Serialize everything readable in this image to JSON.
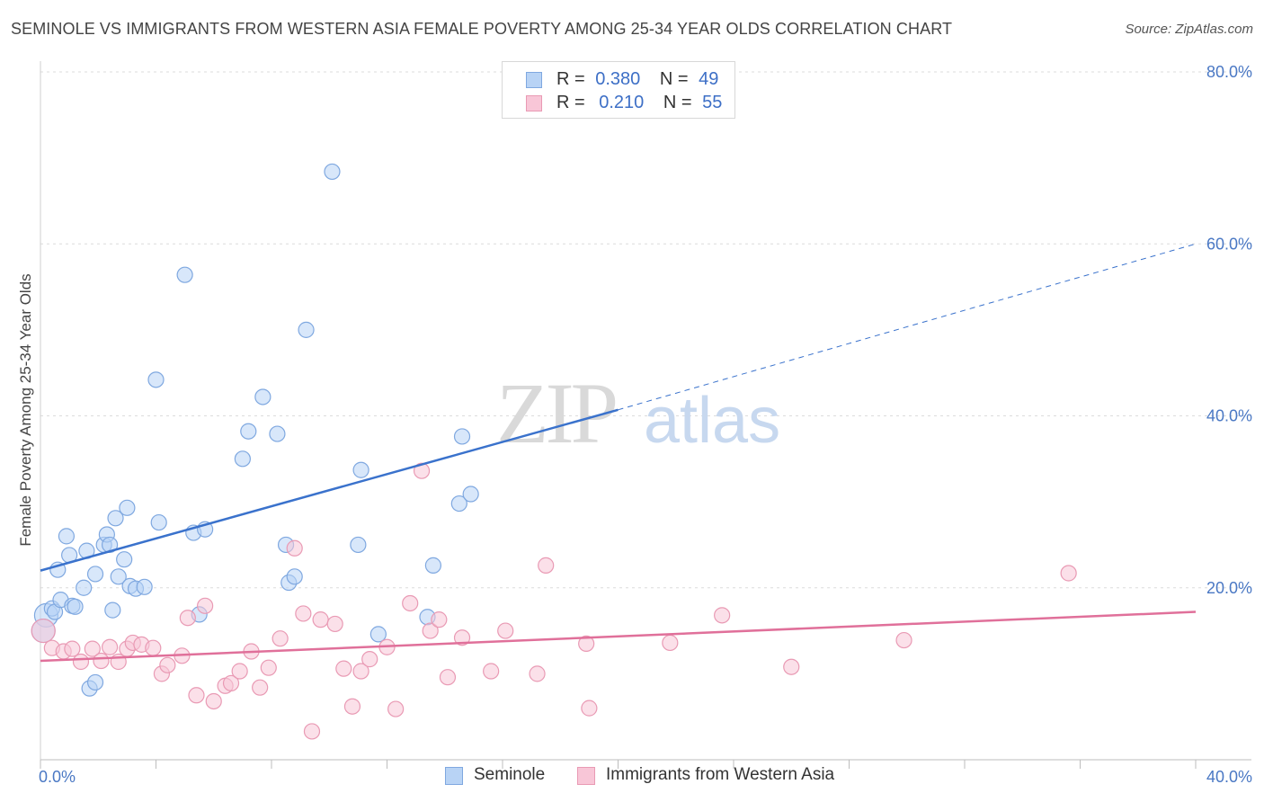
{
  "title": "SEMINOLE VS IMMIGRANTS FROM WESTERN ASIA FEMALE POVERTY AMONG 25-34 YEAR OLDS CORRELATION CHART",
  "source": "Source: ZipAtlas.com",
  "watermark": {
    "zip": "ZIP",
    "atlas": "atlas"
  },
  "legend": [
    {
      "r_label": "R =",
      "r_value": "0.380",
      "n_label": "N =",
      "n_value": "49",
      "fill": "#b8d3f5",
      "stroke": "#7fa8e0"
    },
    {
      "r_label": "R =",
      "r_value": "0.210",
      "n_label": "N =",
      "n_value": "55",
      "fill": "#f8c6d7",
      "stroke": "#e99ab4"
    }
  ],
  "chart_data": {
    "type": "scatter",
    "title": "SEMINOLE VS IMMIGRANTS FROM WESTERN ASIA FEMALE POVERTY AMONG 25-34 YEAR OLDS CORRELATION CHART",
    "xlabel": "",
    "ylabel": "Female Poverty Among 25-34 Year Olds",
    "xlim": [
      0,
      40
    ],
    "ylim": [
      0,
      80
    ],
    "x_tick_labels": [
      "0.0%",
      "40.0%"
    ],
    "y_ticks": [
      20,
      40,
      60,
      80
    ],
    "y_tick_labels": [
      "20.0%",
      "40.0%",
      "60.0%",
      "80.0%"
    ],
    "grid": true,
    "legend_position": "top-center",
    "series": [
      {
        "name": "Seminole",
        "color": "#7fa8e0",
        "fill": "#b8d3f5",
        "line_color": "#3a72cc",
        "trend": {
          "x": [
            0,
            20
          ],
          "y": [
            22.0,
            40.7
          ],
          "dashed_extension_to_x": 40,
          "dashed_y_end": 60.0
        },
        "points": [
          [
            0.2,
            16.8
          ],
          [
            0.4,
            17.6
          ],
          [
            0.5,
            17.2
          ],
          [
            0.6,
            22.1
          ],
          [
            0.7,
            18.6
          ],
          [
            0.9,
            26.0
          ],
          [
            1.0,
            23.8
          ],
          [
            1.1,
            17.9
          ],
          [
            1.2,
            17.8
          ],
          [
            1.5,
            20.0
          ],
          [
            1.6,
            24.3
          ],
          [
            1.7,
            8.3
          ],
          [
            1.9,
            9.0
          ],
          [
            1.9,
            21.6
          ],
          [
            2.2,
            25.0
          ],
          [
            2.3,
            26.2
          ],
          [
            2.4,
            25.0
          ],
          [
            2.5,
            17.4
          ],
          [
            2.6,
            28.1
          ],
          [
            2.7,
            21.3
          ],
          [
            2.9,
            23.3
          ],
          [
            3.0,
            29.3
          ],
          [
            3.1,
            20.2
          ],
          [
            3.3,
            19.9
          ],
          [
            3.6,
            20.1
          ],
          [
            4.0,
            44.2
          ],
          [
            4.1,
            27.6
          ],
          [
            5.0,
            56.4
          ],
          [
            5.3,
            26.4
          ],
          [
            5.5,
            16.9
          ],
          [
            5.7,
            26.8
          ],
          [
            7.0,
            35.0
          ],
          [
            7.2,
            38.2
          ],
          [
            7.7,
            42.2
          ],
          [
            8.2,
            37.9
          ],
          [
            8.5,
            25.0
          ],
          [
            8.6,
            20.6
          ],
          [
            8.8,
            21.3
          ],
          [
            9.2,
            50.0
          ],
          [
            10.1,
            68.4
          ],
          [
            11.0,
            25.0
          ],
          [
            11.1,
            33.7
          ],
          [
            11.7,
            14.6
          ],
          [
            13.4,
            16.6
          ],
          [
            13.6,
            22.6
          ],
          [
            14.5,
            29.8
          ],
          [
            14.9,
            30.9
          ],
          [
            14.6,
            37.6
          ],
          [
            0.1,
            15.0
          ]
        ]
      },
      {
        "name": "Immigrants from Western Asia",
        "color": "#e99ab4",
        "fill": "#f8c6d7",
        "line_color": "#e0709a",
        "trend": {
          "x": [
            0,
            40
          ],
          "y": [
            11.5,
            17.2
          ]
        },
        "points": [
          [
            0.1,
            15.0
          ],
          [
            0.4,
            13.0
          ],
          [
            0.8,
            12.6
          ],
          [
            1.1,
            12.9
          ],
          [
            1.4,
            11.4
          ],
          [
            1.8,
            12.9
          ],
          [
            2.1,
            11.5
          ],
          [
            2.4,
            13.1
          ],
          [
            2.7,
            11.4
          ],
          [
            3.0,
            12.9
          ],
          [
            3.2,
            13.6
          ],
          [
            3.5,
            13.4
          ],
          [
            3.9,
            13.0
          ],
          [
            4.2,
            10.0
          ],
          [
            4.4,
            11.0
          ],
          [
            4.9,
            12.1
          ],
          [
            5.1,
            16.5
          ],
          [
            5.4,
            7.5
          ],
          [
            5.7,
            17.9
          ],
          [
            6.0,
            6.8
          ],
          [
            6.4,
            8.6
          ],
          [
            6.6,
            8.9
          ],
          [
            6.9,
            10.3
          ],
          [
            7.3,
            12.6
          ],
          [
            7.6,
            8.4
          ],
          [
            7.9,
            10.7
          ],
          [
            8.3,
            14.1
          ],
          [
            8.8,
            24.6
          ],
          [
            9.1,
            17.0
          ],
          [
            9.4,
            3.3
          ],
          [
            9.7,
            16.3
          ],
          [
            10.2,
            15.8
          ],
          [
            10.5,
            10.6
          ],
          [
            10.8,
            6.2
          ],
          [
            11.1,
            10.3
          ],
          [
            11.4,
            11.7
          ],
          [
            12.0,
            13.1
          ],
          [
            12.3,
            5.9
          ],
          [
            12.8,
            18.2
          ],
          [
            13.2,
            33.6
          ],
          [
            13.5,
            15.0
          ],
          [
            13.8,
            16.3
          ],
          [
            14.1,
            9.6
          ],
          [
            14.6,
            14.2
          ],
          [
            15.6,
            10.3
          ],
          [
            16.1,
            15.0
          ],
          [
            17.2,
            10.0
          ],
          [
            17.5,
            22.6
          ],
          [
            18.9,
            13.5
          ],
          [
            19.0,
            6.0
          ],
          [
            21.8,
            13.6
          ],
          [
            23.6,
            16.8
          ],
          [
            26.0,
            10.8
          ],
          [
            29.9,
            13.9
          ],
          [
            35.6,
            21.7
          ]
        ]
      }
    ]
  }
}
